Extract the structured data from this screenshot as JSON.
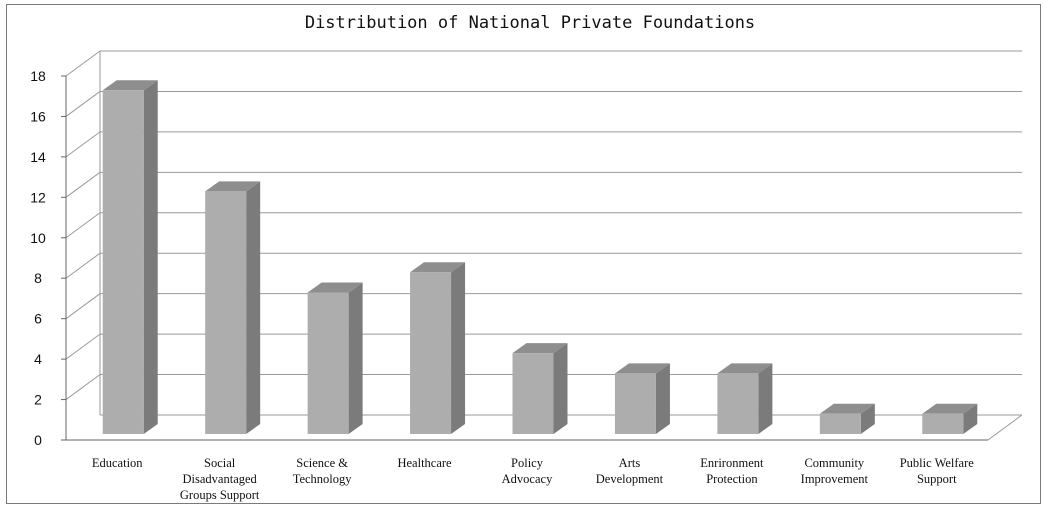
{
  "chart_data": {
    "type": "bar",
    "title": "Distribution of National Private Foundations",
    "xlabel": "",
    "ylabel": "",
    "ylim": [
      0,
      18
    ],
    "yticks": [
      0,
      2,
      4,
      6,
      8,
      10,
      12,
      14,
      16,
      18
    ],
    "grid": true,
    "legend": "none",
    "categories": [
      [
        "Education"
      ],
      [
        "Social",
        "Disadvantaged",
        "Groups Support"
      ],
      [
        "Science &",
        "Technology"
      ],
      [
        "Healthcare"
      ],
      [
        "Policy",
        "Advocacy"
      ],
      [
        "Arts",
        "Development"
      ],
      [
        "Enrironment",
        "Protection"
      ],
      [
        "Community",
        "Improvement"
      ],
      [
        "Public Welfare",
        "Support"
      ]
    ],
    "values": [
      17,
      12,
      7,
      8,
      4,
      3,
      3,
      1,
      1
    ],
    "colors": {
      "bar_front": "#adadad",
      "bar_side": "#7b7b7b",
      "bar_top": "#8e8e8e",
      "grid": "#9a9a9a",
      "axis": "#666666"
    }
  }
}
